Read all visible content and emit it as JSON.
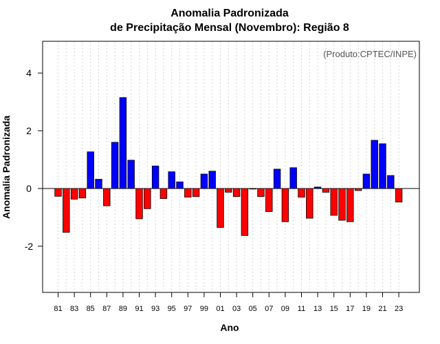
{
  "chart_data": {
    "type": "bar",
    "title": "Anomalia Padronizada",
    "subtitle": "de Precipitação Mensal (Novembro): Região 8",
    "xlabel": "Ano",
    "ylabel": "Anomalia Padronizada",
    "credit": "(Produto:CPTEC/INPE)",
    "ylim": [
      -3.6,
      5.1
    ],
    "yticks": [
      {
        "value": -2,
        "label": "-2"
      },
      {
        "value": 0,
        "label": "0"
      },
      {
        "value": 2,
        "label": "2"
      },
      {
        "value": 4,
        "label": "4"
      }
    ],
    "categories": [
      "81",
      "82",
      "83",
      "84",
      "85",
      "86",
      "87",
      "88",
      "89",
      "90",
      "91",
      "92",
      "93",
      "94",
      "95",
      "96",
      "97",
      "98",
      "99",
      "00",
      "01",
      "02",
      "03",
      "04",
      "05",
      "06",
      "07",
      "08",
      "09",
      "10",
      "11",
      "12",
      "13",
      "14",
      "15",
      "16",
      "17",
      "18",
      "19",
      "20",
      "21",
      "22",
      "23"
    ],
    "tick_labels": [
      "81",
      "83",
      "85",
      "87",
      "89",
      "91",
      "93",
      "95",
      "97",
      "99",
      "01",
      "03",
      "05",
      "07",
      "09",
      "11",
      "13",
      "15",
      "17",
      "19",
      "21",
      "23"
    ],
    "values": [
      -0.27,
      -1.52,
      -0.37,
      -0.33,
      1.27,
      0.32,
      -0.6,
      1.6,
      3.15,
      0.98,
      -1.05,
      -0.7,
      0.78,
      -0.35,
      0.58,
      0.23,
      -0.3,
      -0.28,
      0.5,
      0.6,
      -1.35,
      -0.13,
      -0.28,
      -1.63,
      -0.02,
      -0.28,
      -0.8,
      0.67,
      -1.15,
      0.72,
      -0.3,
      -1.03,
      0.05,
      -0.13,
      -0.93,
      -1.1,
      -1.15,
      -0.07,
      0.5,
      1.67,
      1.55,
      0.45,
      -0.47
    ],
    "colors": {
      "positive": "#0000ff",
      "negative": "#ff0000",
      "grid": "#d3d3d3",
      "axis": "#000000"
    },
    "grid": true
  }
}
